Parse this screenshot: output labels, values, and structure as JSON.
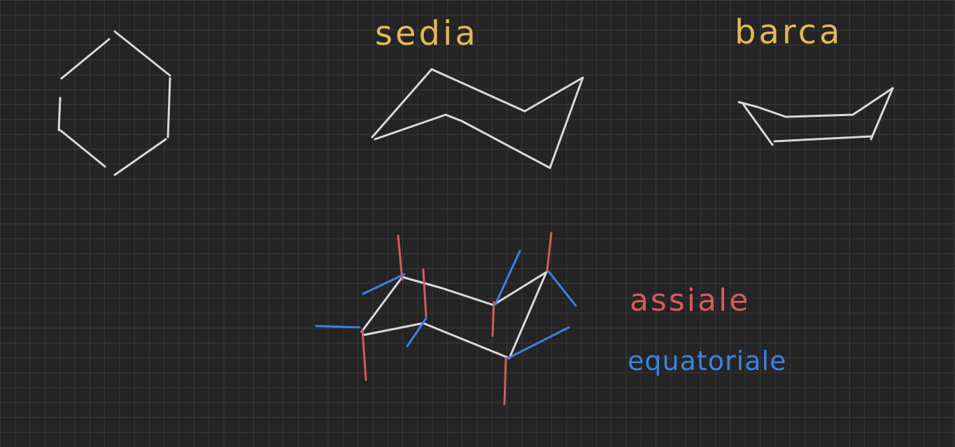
{
  "colors": {
    "background": "#242424",
    "grid": "#3a3a3a",
    "structure": "#d9d9d9",
    "title": "#e2b857",
    "axial": "#d35c5c",
    "equatorial": "#3b82e0"
  },
  "labels": {
    "chair": "sedia",
    "boat": "barca",
    "axial": "assiale",
    "equatorial": "equatoriale"
  }
}
